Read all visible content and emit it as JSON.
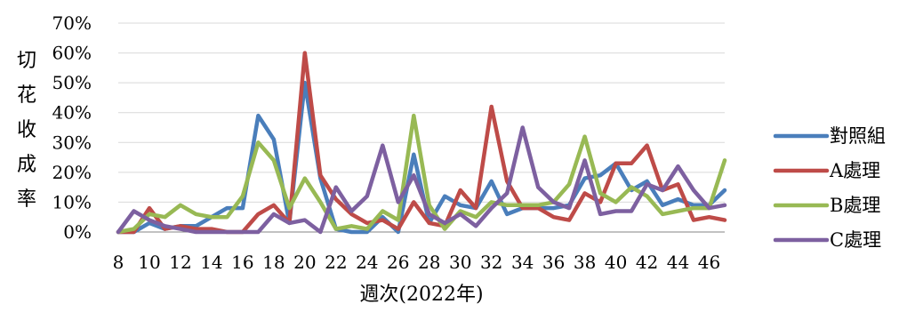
{
  "chart_data": {
    "type": "line",
    "title": "",
    "xlabel": "週次(2022年)",
    "ylabel": "切花收成率",
    "ylim": [
      0,
      70
    ],
    "y_ticks": [
      "0%",
      "10%",
      "20%",
      "30%",
      "40%",
      "50%",
      "60%",
      "70%"
    ],
    "x": [
      8,
      9,
      10,
      11,
      12,
      13,
      14,
      15,
      16,
      17,
      18,
      19,
      20,
      21,
      22,
      23,
      24,
      25,
      26,
      27,
      28,
      29,
      30,
      31,
      32,
      33,
      34,
      35,
      36,
      37,
      38,
      39,
      40,
      41,
      42,
      43,
      44,
      45,
      46,
      47
    ],
    "x_tick_labels": [
      "8",
      "10",
      "12",
      "14",
      "16",
      "18",
      "20",
      "22",
      "24",
      "26",
      "28",
      "30",
      "32",
      "34",
      "36",
      "38",
      "40",
      "42",
      "44",
      "46"
    ],
    "grid": "horizontal",
    "legend_position": "right",
    "series": [
      {
        "name": "對照組",
        "color": "#4a7ebb",
        "values": [
          0,
          0,
          3,
          1,
          2,
          2,
          5,
          8,
          8,
          39,
          31,
          3,
          50,
          18,
          1,
          0,
          0,
          5,
          0,
          26,
          3,
          12,
          9,
          8,
          17,
          6,
          8,
          8,
          8,
          9,
          18,
          19,
          23,
          14,
          17,
          9,
          11,
          9,
          9,
          14
        ]
      },
      {
        "name": "A處理",
        "color": "#be4b48",
        "values": [
          0,
          0,
          8,
          1,
          2,
          1,
          1,
          0,
          0,
          6,
          9,
          3,
          60,
          19,
          11,
          6,
          3,
          4,
          1,
          10,
          3,
          2,
          14,
          8,
          42,
          17,
          8,
          8,
          5,
          4,
          13,
          10,
          23,
          23,
          29,
          14,
          16,
          4,
          5,
          4
        ]
      },
      {
        "name": "B處理",
        "color": "#98b954",
        "values": [
          0,
          1,
          6,
          5,
          9,
          6,
          5,
          5,
          12,
          30,
          24,
          8,
          18,
          10,
          1,
          2,
          1,
          7,
          4,
          39,
          9,
          1,
          7,
          5,
          10,
          9,
          9,
          9,
          10,
          16,
          32,
          13,
          10,
          15,
          12,
          6,
          7,
          8,
          8,
          24
        ]
      },
      {
        "name": "C處理",
        "color": "#7d60a0",
        "values": [
          0,
          7,
          4,
          2,
          1,
          0,
          0,
          0,
          0,
          0,
          6,
          3,
          4,
          0,
          15,
          7,
          12,
          29,
          10,
          19,
          6,
          3,
          6,
          2,
          8,
          13,
          35,
          15,
          10,
          8,
          24,
          6,
          7,
          7,
          16,
          14,
          22,
          14,
          8,
          9
        ]
      }
    ]
  }
}
